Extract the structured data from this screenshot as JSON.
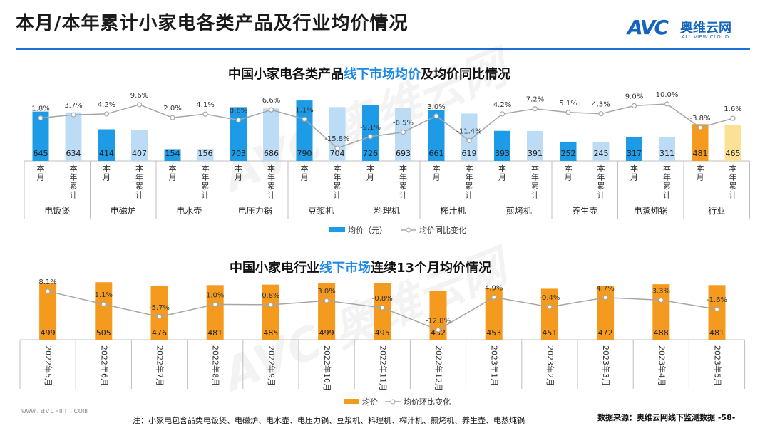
{
  "page_title": "本月/本年累计小家电各类产品及行业均价情况",
  "logo": {
    "mark": "AVC",
    "name_cn": "奥维云网",
    "name_en": "ALL VIEW CLOUD"
  },
  "watermark": "奥维云网",
  "footer": {
    "url": "www.avc-mr.com",
    "note": "注：小家电包含品类电饭煲、电磁炉、电水壶、电压力锅、豆浆机、料理机、榨汁机、煎烤机、养生壶、电蒸炖锅",
    "source": "数据来源：奥维云网线下监测数据",
    "page": "-58-"
  },
  "colors": {
    "current": "#1e9be6",
    "cumulative": "#bcdcf6",
    "industry_current": "#f39a1f",
    "industry_cumulative": "#fbe195",
    "line": "#a6a6a6",
    "orange": "#f39a1f"
  },
  "chart_data": [
    {
      "type": "bar",
      "title_parts": [
        "中国小家电各类产品",
        "线下市场均价",
        "及均价同比情况"
      ],
      "groups": [
        "电饭煲",
        "电磁炉",
        "电水壶",
        "电压力锅",
        "豆浆机",
        "料理机",
        "榨汁机",
        "煎烤机",
        "养生壶",
        "电蒸炖锅",
        "行业"
      ],
      "subcategories": [
        "本月",
        "本年累计"
      ],
      "series": [
        {
          "name": "均价（元）",
          "values": [
            [
              645,
              634
            ],
            [
              414,
              407
            ],
            [
              154,
              156
            ],
            [
              703,
              686
            ],
            [
              790,
              704
            ],
            [
              726,
              693
            ],
            [
              661,
              619
            ],
            [
              393,
              391
            ],
            [
              252,
              245
            ],
            [
              317,
              311
            ],
            [
              481,
              465
            ]
          ]
        },
        {
          "name": "均价同比变化",
          "labels": [
            [
              "1.8%",
              "3.7%"
            ],
            [
              "4.2%",
              "9.6%"
            ],
            [
              "2.0%",
              "4.1%"
            ],
            [
              "0.6%",
              "6.6%"
            ],
            [
              "1.1%",
              "-15.8%"
            ],
            [
              "-9.1%",
              "-6.5%"
            ],
            [
              "3.0%",
              "-11.4%"
            ],
            [
              "4.2%",
              "7.2%"
            ],
            [
              "5.1%",
              "4.3%"
            ],
            [
              "9.0%",
              "10.0%"
            ],
            [
              "-3.8%",
              "1.6%"
            ]
          ],
          "values": [
            [
              1.8,
              3.7
            ],
            [
              4.2,
              9.6
            ],
            [
              2.0,
              4.1
            ],
            [
              0.6,
              6.6
            ],
            [
              1.1,
              -15.8
            ],
            [
              -9.1,
              -6.5
            ],
            [
              3.0,
              -11.4
            ],
            [
              4.2,
              7.2
            ],
            [
              5.1,
              4.3
            ],
            [
              9.0,
              10.0
            ],
            [
              -3.8,
              1.6
            ]
          ]
        }
      ],
      "legend": [
        "均价（元）",
        "均价同比变化"
      ]
    },
    {
      "type": "bar",
      "title_parts": [
        "中国小家电行业",
        "线下市场",
        "连续13个月均价情况"
      ],
      "categories": [
        "2022年5月",
        "2022年6月",
        "2022年7月",
        "2022年8月",
        "2022年9月",
        "2022年10月",
        "2022年11月",
        "2022年12月",
        "2023年1月",
        "2023年2月",
        "2023年3月",
        "2023年4月",
        "2023年5月"
      ],
      "series": [
        {
          "name": "均价",
          "values": [
            499,
            505,
            476,
            481,
            485,
            499,
            495,
            432,
            453,
            451,
            472,
            488,
            481
          ]
        },
        {
          "name": "均价环比变化",
          "labels": [
            "8.1%",
            "1.1%",
            "-5.7%",
            "1.0%",
            "0.8%",
            "3.0%",
            "-0.8%",
            "-12.8%",
            "4.9%",
            "-0.4%",
            "4.7%",
            "3.3%",
            "-1.6%"
          ],
          "values": [
            8.1,
            1.1,
            -5.7,
            1.0,
            0.8,
            3.0,
            -0.8,
            -12.8,
            4.9,
            -0.4,
            4.7,
            3.3,
            -1.6
          ]
        }
      ],
      "legend": [
        "均价",
        "均价环比变化"
      ]
    }
  ]
}
